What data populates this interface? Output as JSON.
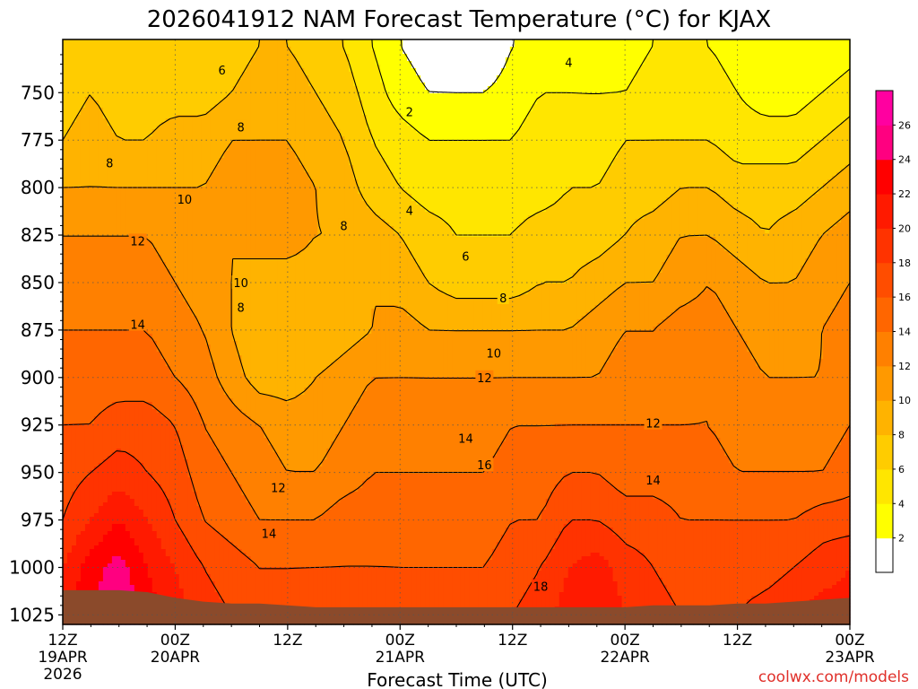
{
  "chart_data": {
    "type": "contour",
    "title": "2026041912 NAM Forecast Temperature (°C) for KJAX",
    "xlabel": "Forecast Time (UTC)",
    "ylabel": "",
    "credit": "coolwx.com/models",
    "x_hours": [
      0,
      3,
      6,
      9,
      12,
      15,
      18,
      21,
      24,
      27,
      30,
      33,
      36,
      39,
      42,
      45,
      48,
      51,
      54,
      57,
      60,
      63,
      66,
      69,
      72,
      75,
      78,
      81,
      84
    ],
    "pressure_levels": [
      725,
      750,
      775,
      800,
      825,
      850,
      875,
      900,
      925,
      950,
      975,
      1000,
      1025
    ],
    "temperature": [
      [
        6,
        7,
        7,
        6,
        6,
        6,
        7,
        8,
        8,
        7,
        6,
        4,
        2,
        1,
        0,
        0,
        2,
        3,
        3,
        2,
        3,
        4,
        4,
        4,
        3,
        3,
        2,
        2,
        3
      ],
      [
        7,
        8,
        7,
        7,
        7,
        7,
        8,
        9,
        9,
        8,
        7,
        5,
        3,
        2,
        2,
        2,
        3,
        4,
        4,
        4,
        4,
        5,
        5,
        5,
        4,
        3,
        3,
        4,
        5
      ],
      [
        8,
        9,
        8,
        8,
        9,
        9,
        10,
        10,
        10,
        9,
        8,
        6,
        5,
        4,
        4,
        4,
        4,
        5,
        5,
        5,
        6,
        6,
        6,
        6,
        5,
        5,
        5,
        6,
        7
      ],
      [
        10,
        10,
        10,
        10,
        10,
        10,
        11,
        11,
        11,
        10,
        9,
        7,
        6,
        5,
        5,
        5,
        5,
        5,
        6,
        6,
        7,
        7,
        8,
        8,
        7,
        7,
        7,
        8,
        9
      ],
      [
        12,
        12,
        12,
        12,
        11,
        11,
        10,
        11,
        11,
        10,
        10,
        9,
        8,
        7,
        6,
        6,
        6,
        7,
        7,
        7,
        8,
        9,
        10,
        10,
        9,
        8,
        9,
        10,
        11
      ],
      [
        13,
        13,
        13,
        13,
        12,
        11,
        10,
        9,
        9,
        9,
        9,
        10,
        9,
        8,
        7,
        7,
        7,
        8,
        8,
        9,
        10,
        10,
        11,
        12,
        11,
        10,
        10,
        11,
        12
      ],
      [
        14,
        14,
        14,
        14,
        13,
        12,
        10,
        8,
        8,
        8,
        9,
        10,
        11,
        10,
        10,
        10,
        10,
        10,
        10,
        11,
        12,
        12,
        13,
        13,
        12,
        11,
        11,
        12,
        13
      ],
      [
        15,
        15,
        15,
        15,
        14,
        13,
        11,
        9,
        9,
        10,
        11,
        12,
        12,
        12,
        12,
        12,
        12,
        12,
        12,
        12,
        13,
        13,
        13,
        14,
        13,
        12,
        12,
        12,
        13
      ],
      [
        16,
        16,
        17,
        17,
        16,
        14,
        13,
        12,
        11,
        11,
        12,
        13,
        13,
        13,
        13,
        13,
        14,
        14,
        14,
        14,
        14,
        14,
        14,
        14,
        13,
        13,
        13,
        13,
        14
      ],
      [
        17,
        18,
        19,
        18,
        17,
        15,
        14,
        13,
        12,
        12,
        13,
        14,
        14,
        14,
        14,
        14,
        15,
        15,
        16,
        16,
        15,
        15,
        15,
        15,
        14,
        14,
        14,
        14,
        15
      ],
      [
        18,
        20,
        22,
        20,
        18,
        16,
        15,
        14,
        14,
        14,
        15,
        15,
        15,
        15,
        15,
        15,
        16,
        16,
        18,
        18,
        17,
        17,
        16,
        16,
        16,
        16,
        16,
        17,
        17
      ],
      [
        20,
        23,
        25,
        22,
        20,
        18,
        17,
        16,
        16,
        16,
        16,
        16,
        16,
        16,
        16,
        16,
        17,
        18,
        20,
        21,
        19,
        18,
        17,
        17,
        17,
        17,
        18,
        19,
        20
      ],
      [
        21,
        24,
        26,
        23,
        21,
        19,
        18,
        17,
        17,
        18,
        18,
        18,
        17,
        17,
        17,
        17,
        18,
        19,
        21,
        22,
        20,
        19,
        18,
        18,
        18,
        19,
        20,
        21,
        21
      ]
    ],
    "color_levels": [
      2,
      4,
      6,
      8,
      10,
      12,
      14,
      16,
      18,
      20,
      22,
      24,
      26,
      28
    ],
    "colorbar_ticks": [
      "2",
      "4",
      "6",
      "8",
      "10",
      "12",
      "14",
      "16",
      "18",
      "20",
      "22",
      "24",
      "26"
    ],
    "colors": {
      "below": "#ffffff",
      "bands": [
        "#ffff00",
        "#ffe600",
        "#ffcc00",
        "#ffb300",
        "#ff9900",
        "#ff8000",
        "#ff6600",
        "#ff4d00",
        "#ff3300",
        "#ff1a00",
        "#ff0000",
        "#ff0080",
        "#ff00a0"
      ],
      "ground": "#8b4a2b",
      "line": "#000000"
    },
    "contour_levels": [
      2,
      4,
      6,
      8,
      10,
      12,
      14,
      16,
      18
    ],
    "contour_labels": [
      {
        "value": "2",
        "hour": 37,
        "pressure": 760
      },
      {
        "value": "4",
        "hour": 37,
        "pressure": 812
      },
      {
        "value": "4",
        "hour": 54,
        "pressure": 734
      },
      {
        "value": "6",
        "hour": 17,
        "pressure": 738
      },
      {
        "value": "6",
        "hour": 43,
        "pressure": 836
      },
      {
        "value": "8",
        "hour": 5,
        "pressure": 787
      },
      {
        "value": "8",
        "hour": 19,
        "pressure": 768
      },
      {
        "value": "8",
        "hour": 30,
        "pressure": 820
      },
      {
        "value": "8",
        "hour": 47,
        "pressure": 858
      },
      {
        "value": "8",
        "hour": 19,
        "pressure": 863
      },
      {
        "value": "10",
        "hour": 13,
        "pressure": 806
      },
      {
        "value": "10",
        "hour": 19,
        "pressure": 850
      },
      {
        "value": "10",
        "hour": 46,
        "pressure": 887
      },
      {
        "value": "12",
        "hour": 8,
        "pressure": 828
      },
      {
        "value": "12",
        "hour": 23,
        "pressure": 958
      },
      {
        "value": "12",
        "hour": 45,
        "pressure": 900
      },
      {
        "value": "12",
        "hour": 63,
        "pressure": 924
      },
      {
        "value": "14",
        "hour": 8,
        "pressure": 872
      },
      {
        "value": "14",
        "hour": 22,
        "pressure": 982
      },
      {
        "value": "14",
        "hour": 43,
        "pressure": 932
      },
      {
        "value": "14",
        "hour": 63,
        "pressure": 954
      },
      {
        "value": "16",
        "hour": 45,
        "pressure": 946
      },
      {
        "value": "18",
        "hour": 51,
        "pressure": 1010
      }
    ],
    "x_ticks": [
      {
        "hour": 0,
        "label": "12Z",
        "date": "19APR",
        "year": "2026"
      },
      {
        "hour": 12,
        "label": "00Z",
        "date": "20APR",
        "year": ""
      },
      {
        "hour": 24,
        "label": "12Z",
        "date": "",
        "year": ""
      },
      {
        "hour": 36,
        "label": "00Z",
        "date": "21APR",
        "year": ""
      },
      {
        "hour": 48,
        "label": "12Z",
        "date": "",
        "year": ""
      },
      {
        "hour": 60,
        "label": "00Z",
        "date": "22APR",
        "year": ""
      },
      {
        "hour": 72,
        "label": "12Z",
        "date": "",
        "year": ""
      },
      {
        "hour": 84,
        "label": "00Z",
        "date": "23APR",
        "year": ""
      }
    ],
    "y_ticks": [
      "750",
      "775",
      "800",
      "825",
      "850",
      "875",
      "900",
      "925",
      "950",
      "975",
      "1000",
      "1025"
    ],
    "xlim": [
      0,
      84
    ],
    "ylim": [
      722,
      1030
    ],
    "ground_surface": [
      [
        0,
        1012
      ],
      [
        6,
        1012
      ],
      [
        9,
        1013
      ],
      [
        12,
        1016
      ],
      [
        15,
        1018
      ],
      [
        18,
        1019
      ],
      [
        21,
        1019
      ],
      [
        24,
        1020
      ],
      [
        27,
        1021
      ],
      [
        30,
        1021
      ],
      [
        33,
        1021
      ],
      [
        36,
        1021
      ],
      [
        39,
        1021
      ],
      [
        42,
        1021
      ],
      [
        45,
        1021
      ],
      [
        48,
        1021
      ],
      [
        51,
        1021
      ],
      [
        54,
        1021
      ],
      [
        57,
        1021
      ],
      [
        60,
        1021
      ],
      [
        63,
        1020
      ],
      [
        66,
        1020
      ],
      [
        69,
        1020
      ],
      [
        72,
        1019
      ],
      [
        75,
        1019
      ],
      [
        78,
        1018
      ],
      [
        81,
        1017
      ],
      [
        84,
        1016
      ]
    ],
    "grid": true
  }
}
